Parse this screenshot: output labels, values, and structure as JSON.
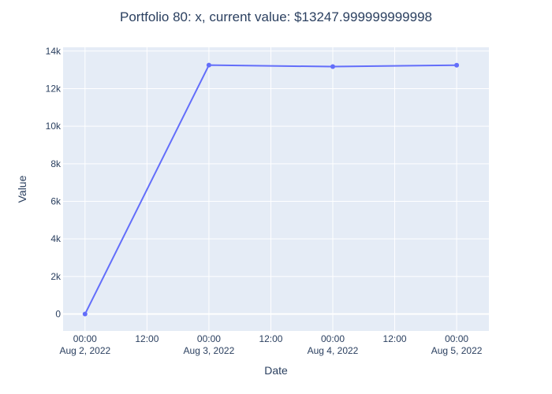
{
  "chart_data": {
    "type": "line",
    "title": "Portfolio 80: x, current value: $13247.999999999998",
    "xlabel": "Date",
    "ylabel": "Value",
    "x": [
      "2022-08-02 00:00",
      "2022-08-03 00:00",
      "2022-08-04 00:00",
      "2022-08-05 00:00"
    ],
    "series": [
      {
        "values": [
          0,
          13250,
          13170,
          13248
        ],
        "color": "#636efa"
      }
    ],
    "ylim": [
      -900,
      14200
    ],
    "xlim": [
      "2022-08-01 19:45",
      "2022-08-05 06:15"
    ],
    "yticks": [
      {
        "value": 0,
        "label": "0"
      },
      {
        "value": 2000,
        "label": "2k"
      },
      {
        "value": 4000,
        "label": "4k"
      },
      {
        "value": 6000,
        "label": "6k"
      },
      {
        "value": 8000,
        "label": "8k"
      },
      {
        "value": 10000,
        "label": "10k"
      },
      {
        "value": 12000,
        "label": "12k"
      },
      {
        "value": 14000,
        "label": "14k"
      }
    ],
    "xticks": [
      {
        "value": "2022-08-02 00:00",
        "line1": "00:00",
        "line2": "Aug 2, 2022"
      },
      {
        "value": "2022-08-02 12:00",
        "line1": "12:00",
        "line2": ""
      },
      {
        "value": "2022-08-03 00:00",
        "line1": "00:00",
        "line2": "Aug 3, 2022"
      },
      {
        "value": "2022-08-03 12:00",
        "line1": "12:00",
        "line2": ""
      },
      {
        "value": "2022-08-04 00:00",
        "line1": "00:00",
        "line2": "Aug 4, 2022"
      },
      {
        "value": "2022-08-04 12:00",
        "line1": "12:00",
        "line2": ""
      },
      {
        "value": "2022-08-05 00:00",
        "line1": "00:00",
        "line2": "Aug 5, 2022"
      }
    ],
    "grid": true,
    "colors": {
      "plot_bg": "#e5ecf6",
      "grid": "#ffffff",
      "text": "#2a3f5f"
    }
  }
}
